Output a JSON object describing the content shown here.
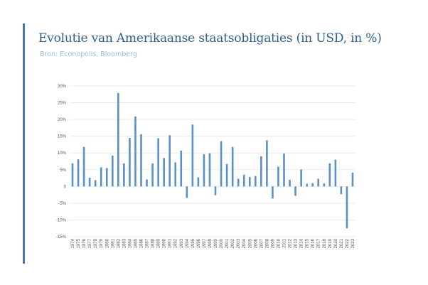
{
  "header": {
    "title": "Evolutie van Amerikaanse staatsobligaties (in USD, in %)",
    "source": "Bron: Econopolis, Bloomberg"
  },
  "colors": {
    "accent": "#4a78a6",
    "title": "#2f5e8c",
    "source": "#9cbcd6",
    "bar": "#5b90c4",
    "grid": "#e6e6e6"
  },
  "chart_data": {
    "type": "bar",
    "title": "Evolutie van Amerikaanse staatsobligaties (in USD, in %)",
    "xlabel": "",
    "ylabel": "",
    "ylim": [
      -15,
      30
    ],
    "yticks": [
      30,
      25,
      20,
      15,
      10,
      5,
      0,
      -5,
      -10,
      -15
    ],
    "ytick_labels": [
      "30%",
      "25%",
      "20%",
      "15%",
      "10%",
      "5%",
      "0",
      "-5%",
      "-10%",
      "-15%"
    ],
    "grid": true,
    "legend": "none",
    "categories": [
      "1974",
      "1975",
      "1976",
      "1977",
      "1978",
      "1979",
      "1980",
      "1981",
      "1982",
      "1983",
      "1984",
      "1985",
      "1986",
      "1987",
      "1988",
      "1989",
      "1990",
      "1991",
      "1992",
      "1993",
      "1994",
      "1995",
      "1996",
      "1997",
      "1998",
      "1999",
      "2000",
      "2001",
      "2002",
      "2003",
      "2004",
      "2005",
      "2006",
      "2007",
      "2008",
      "2009",
      "2010",
      "2011",
      "2012",
      "2013",
      "2014",
      "2015",
      "2016",
      "2017",
      "2018",
      "2019",
      "2020",
      "2021",
      "2022",
      "2023"
    ],
    "values": [
      6.9,
      8.1,
      11.8,
      2.6,
      1.9,
      5.7,
      5.5,
      9.2,
      27.9,
      6.9,
      14.5,
      20.9,
      15.6,
      2.1,
      6.9,
      14.4,
      8.5,
      15.3,
      7.2,
      10.7,
      -3.4,
      18.5,
      2.7,
      9.6,
      9.9,
      -2.6,
      13.5,
      6.7,
      11.8,
      2.3,
      3.5,
      2.8,
      3.1,
      9.0,
      13.8,
      -3.6,
      5.9,
      9.8,
      2.0,
      -2.8,
      5.1,
      0.8,
      1.0,
      2.3,
      0.9,
      6.9,
      8.0,
      -2.3,
      -12.5,
      4.1
    ]
  }
}
